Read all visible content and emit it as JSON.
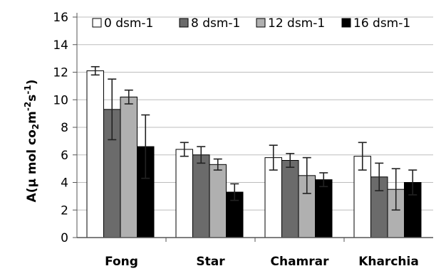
{
  "chart_data": {
    "type": "bar",
    "title": "",
    "xlabel": "",
    "ylabel": {
      "prefix": "A(",
      "mu": "μ",
      "mid1": " mol co",
      "sub2": "2",
      "mid2": "m",
      "sup1": "-2",
      "mid3": "s",
      "sup2": "-1",
      "suffix": ")"
    },
    "ylim": [
      0,
      16
    ],
    "yticks": [
      "0",
      "2",
      "4",
      "6",
      "8",
      "10",
      "12",
      "14",
      "16"
    ],
    "grid": true,
    "legend_position": "top",
    "categories": [
      "Fong",
      "Star",
      "Chamrar",
      "Kharchia"
    ],
    "series": [
      {
        "name": "0 dsm-1",
        "color": "#ffffff",
        "values": [
          12.1,
          6.4,
          5.8,
          5.9
        ],
        "errors": [
          0.3,
          0.5,
          0.9,
          1.0
        ]
      },
      {
        "name": "8 dsm-1",
        "color": "#6b6b6b",
        "values": [
          9.3,
          6.0,
          5.6,
          4.4
        ],
        "errors": [
          2.2,
          0.6,
          0.5,
          1.0
        ]
      },
      {
        "name": "12 dsm-1",
        "color": "#b0b0b0",
        "values": [
          10.2,
          5.3,
          4.5,
          3.5
        ],
        "errors": [
          0.5,
          0.4,
          1.3,
          1.5
        ]
      },
      {
        "name": "16 dsm-1",
        "color": "#000000",
        "values": [
          6.6,
          3.3,
          4.2,
          4.0
        ],
        "errors": [
          2.3,
          0.6,
          0.5,
          0.9
        ]
      }
    ]
  }
}
